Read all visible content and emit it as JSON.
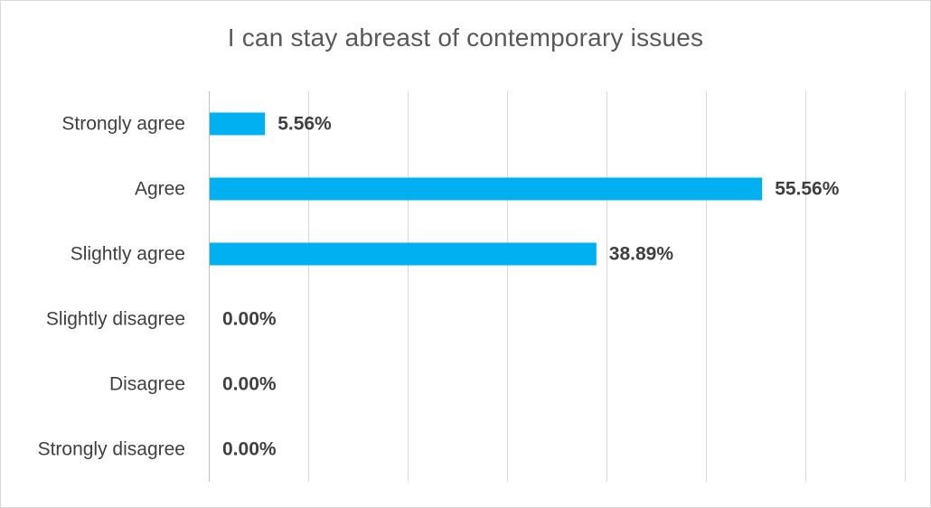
{
  "chart_data": {
    "type": "bar",
    "orientation": "horizontal",
    "title": "I can stay abreast of contemporary issues",
    "xlabel": "",
    "ylabel": "",
    "categories": [
      "Strongly agree",
      "Agree",
      "Slightly agree",
      "Slightly disagree",
      "Disagree",
      "Strongly disagree"
    ],
    "values": [
      5.56,
      55.56,
      38.89,
      0.0,
      0.0,
      0.0
    ],
    "data_labels": [
      "5.56%",
      "55.56%",
      "38.89%",
      "0.00%",
      "0.00%",
      "0.00%"
    ],
    "xlim": [
      0,
      70
    ],
    "grid": true,
    "legend": "none",
    "bar_color": "#00b0f0",
    "gridline_color": "#d9d9d9",
    "axis_color": "#bfbfbf",
    "text_color": "#404040",
    "title_color": "#595959"
  }
}
